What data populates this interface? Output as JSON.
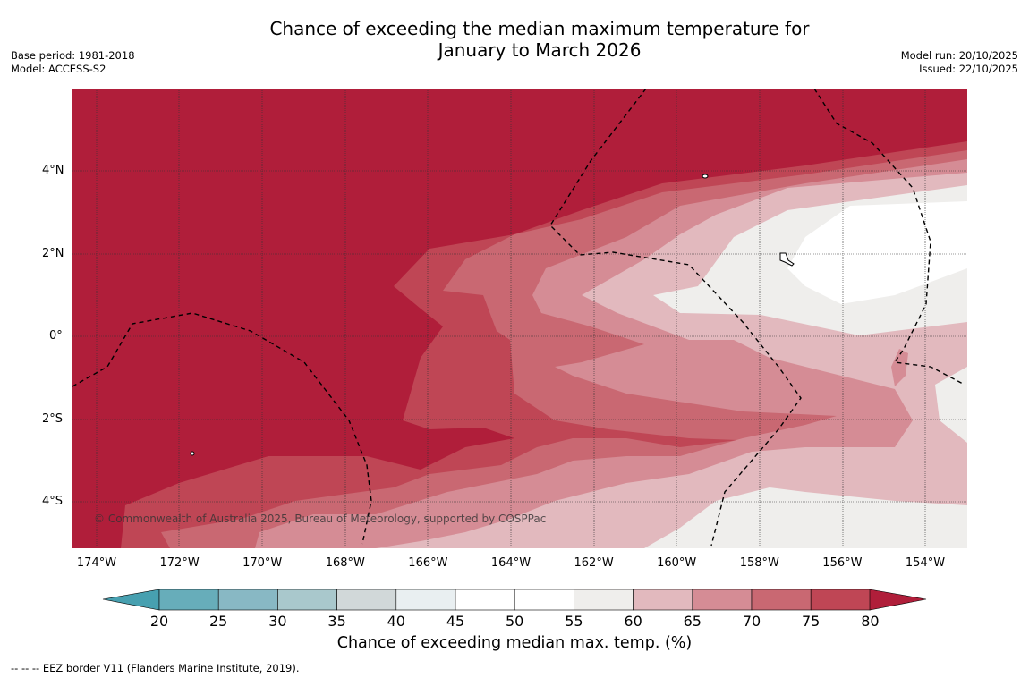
{
  "title_line1": "Chance of exceeding the median maximum temperature for",
  "title_line2": "January to March 2026",
  "meta_left": {
    "base_period": "Base period: 1981-2018",
    "model": "Model: ACCESS-S2"
  },
  "meta_right": {
    "model_run": "Model run: 20/10/2025",
    "issued": "Issued: 22/10/2025"
  },
  "map": {
    "lon_ticks": [
      "174°W",
      "172°W",
      "170°W",
      "168°W",
      "166°W",
      "164°W",
      "162°W",
      "160°W",
      "158°W",
      "156°W",
      "154°W"
    ],
    "lat_ticks": [
      "4°N",
      "2°N",
      "0°",
      "2°S",
      "4°S"
    ],
    "copyright": "© Commonwealth of Australia 2025, Bureau of Meteorology, supported by COSPPac"
  },
  "colorbar": {
    "title": "Chance of exceeding median max. temp. (%)",
    "ticks": [
      "20",
      "25",
      "30",
      "35",
      "40",
      "45",
      "50",
      "55",
      "60",
      "65",
      "70",
      "75",
      "80"
    ],
    "colors": {
      "below": "#47a0b0",
      "bins": [
        "#67adba",
        "#88b8c4",
        "#a9c8cc",
        "#d1d8d9",
        "#e9eff1",
        "#ffffff",
        "#ffffff",
        "#efeeec",
        "#e2b9be",
        "#d58c95",
        "#c96872",
        "#bf4655"
      ],
      "above": "#b01e3a"
    }
  },
  "footer": "--  --  -- EEZ border V11 (Flanders Marine Institute, 2019)."
}
